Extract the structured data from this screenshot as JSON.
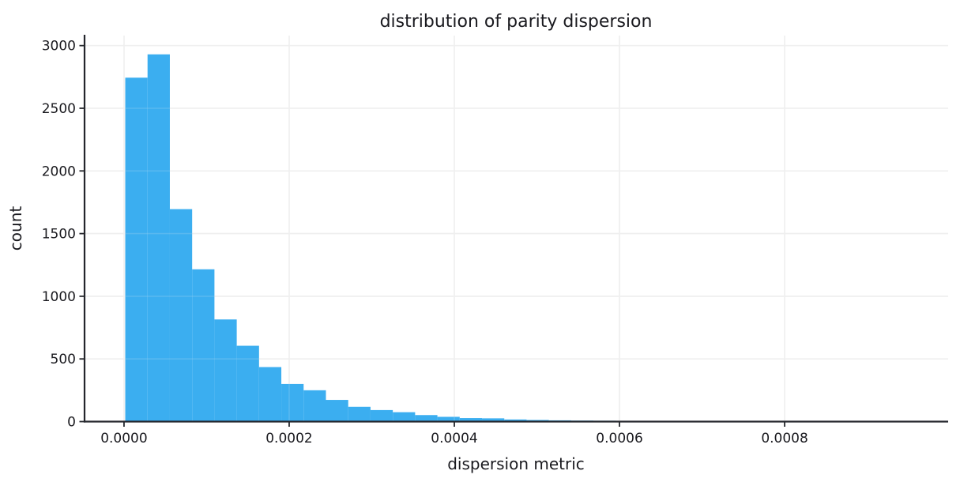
{
  "chart_data": {
    "type": "bar",
    "subtype": "histogram",
    "title": "distribution of parity dispersion",
    "xlabel": "dispersion metric",
    "ylabel": "count",
    "bin_start": 1.5e-06,
    "bin_width": 2.7e-05,
    "counts": [
      2744,
      2930,
      1695,
      1215,
      815,
      605,
      435,
      300,
      250,
      173,
      118,
      92,
      75,
      52,
      38,
      28,
      26,
      17,
      13,
      10,
      8,
      7,
      5,
      3,
      2,
      1,
      0,
      1,
      0,
      0,
      1,
      0,
      0,
      1
    ],
    "xticks": [
      {
        "value": 0.0,
        "label": "0.0000"
      },
      {
        "value": 0.0002,
        "label": "0.0002"
      },
      {
        "value": 0.0004,
        "label": "0.0004"
      },
      {
        "value": 0.0006,
        "label": "0.0006"
      },
      {
        "value": 0.0008,
        "label": "0.0008"
      }
    ],
    "yticks": [
      {
        "value": 0,
        "label": "0"
      },
      {
        "value": 500,
        "label": "500"
      },
      {
        "value": 1000,
        "label": "1000"
      },
      {
        "value": 1500,
        "label": "1500"
      },
      {
        "value": 2000,
        "label": "2000"
      },
      {
        "value": 2500,
        "label": "2500"
      },
      {
        "value": 3000,
        "label": "3000"
      }
    ],
    "xlim": [
      -4.78e-05,
      0.000998
    ],
    "ylim": [
      0,
      3080
    ],
    "grid": true,
    "legend": "none",
    "colors": {
      "bar": "#3BAEF0",
      "grid": "#EFEFEF",
      "spine": "#24262C",
      "text": "#1A1A1F"
    }
  }
}
